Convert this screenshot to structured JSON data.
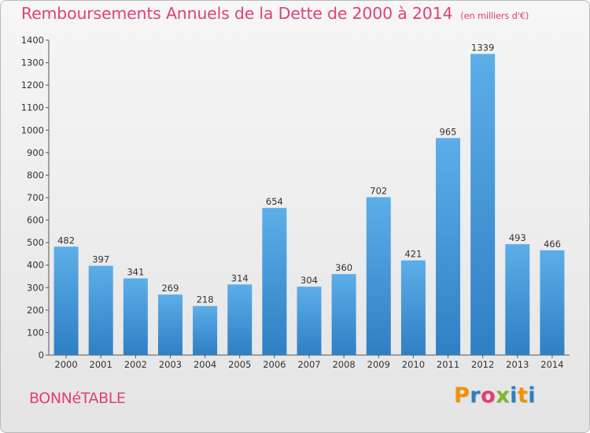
{
  "header": {
    "title": "Remboursements Annuels de la Dette de 2000 à 2014",
    "unit": "(en milliers d'€)"
  },
  "footer": {
    "city": "BONNéTABLE"
  },
  "logo": {
    "text": "Proxiti",
    "colors": [
      "#f39200",
      "#2b7fc1",
      "#e0407a",
      "#7cb82f",
      "#2b7fc1",
      "#f39200",
      "#2b7fc1"
    ]
  },
  "colors": {
    "title": "#e0407a",
    "bar_top": "#5caee8",
    "bar_bottom": "#2f7fc4"
  },
  "chart_data": {
    "type": "bar",
    "title": "Remboursements Annuels de la Dette de 2000 à 2014",
    "xlabel": "",
    "ylabel": "(en milliers d'€)",
    "categories": [
      "2000",
      "2001",
      "2002",
      "2003",
      "2004",
      "2005",
      "2006",
      "2007",
      "2008",
      "2009",
      "2010",
      "2011",
      "2012",
      "2013",
      "2014"
    ],
    "values": [
      482,
      397,
      341,
      269,
      218,
      314,
      654,
      304,
      360,
      702,
      421,
      965,
      1339,
      493,
      466
    ],
    "ylim": [
      0,
      1400
    ],
    "yticks": [
      0,
      100,
      200,
      300,
      400,
      500,
      600,
      700,
      800,
      900,
      1000,
      1100,
      1200,
      1300,
      1400
    ],
    "grid": false,
    "legend": "none"
  }
}
